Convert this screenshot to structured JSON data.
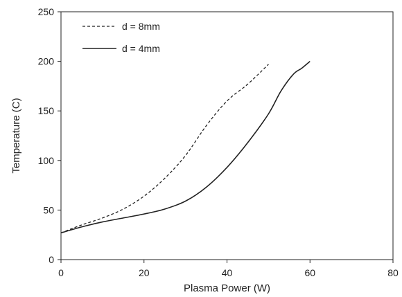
{
  "chart_data": {
    "type": "line",
    "title": "",
    "xlabel": "Plasma Power (W)",
    "ylabel": "Temperature (C)",
    "xlim": [
      0,
      80
    ],
    "ylim": [
      0,
      250
    ],
    "xticks": [
      0,
      20,
      40,
      60,
      80
    ],
    "yticks": [
      0,
      50,
      100,
      150,
      200,
      250
    ],
    "xtick_labels": [
      "0",
      "20",
      "40",
      "60",
      "80"
    ],
    "ytick_labels": [
      "0",
      "50",
      "100",
      "150",
      "200",
      "250"
    ],
    "grid": false,
    "legend_position": "top-left",
    "series": [
      {
        "name": "d = 8mm",
        "style": "dashed",
        "color": "#222222",
        "x": [
          0,
          5,
          10,
          15,
          20,
          25,
          30,
          35,
          40,
          45,
          50
        ],
        "y": [
          27,
          35,
          42,
          51,
          64,
          82,
          105,
          135,
          160,
          177,
          197
        ]
      },
      {
        "name": "d = 4mm",
        "style": "solid",
        "color": "#222222",
        "x": [
          0,
          5,
          10,
          15,
          20,
          25,
          30,
          35,
          40,
          45,
          50,
          53,
          56,
          58,
          60
        ],
        "y": [
          27,
          33,
          38,
          42,
          46,
          51,
          59,
          73,
          93,
          118,
          147,
          170,
          187,
          193,
          200
        ]
      }
    ]
  }
}
